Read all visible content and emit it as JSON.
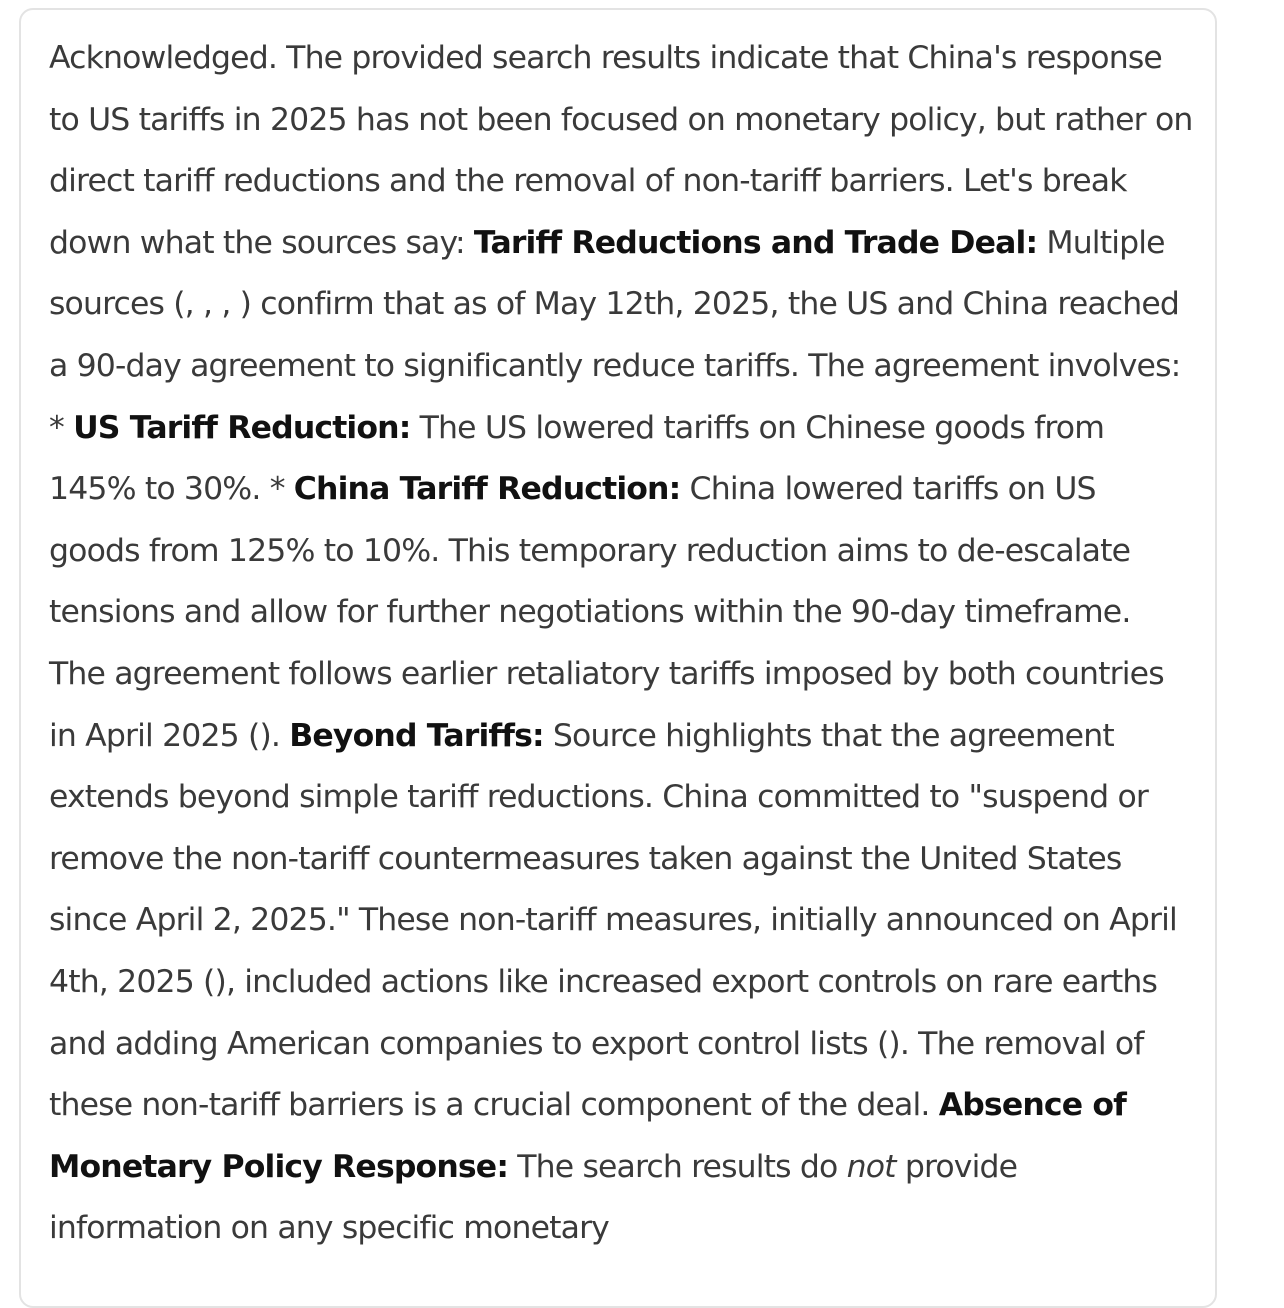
{
  "message": {
    "intro": "Acknowledged. The provided search results indicate that China's response to US tariffs in 2025 has not been focused on monetary policy, but rather on direct tariff reductions and the removal of non-tariff barriers. Let's break down what the sources say: ",
    "h1": "Tariff Reductions and Trade Deal:",
    "p1": " Multiple sources (, , , ) confirm that as of May 12th, 2025, the US and China reached a 90-day agreement to significantly reduce tariffs. The agreement involves: * ",
    "h1a": "US Tariff Reduction:",
    "p1a": " The US lowered tariffs on Chinese goods from 145% to 30%. * ",
    "h1b": "China Tariff Reduction:",
    "p1b": " China lowered tariffs on US goods from 125% to 10%. This temporary reduction aims to de-escalate tensions and allow for further negotiations within the 90-day timeframe. The agreement follows earlier retaliatory tariffs imposed by both countries in April 2025 (). ",
    "h2": "Beyond Tariffs:",
    "p2": " Source highlights that the agreement extends beyond simple tariff reductions. China committed to \"suspend or remove the non-tariff countermeasures taken against the United States since April 2, 2025.\" These non-tariff measures, initially announced on April 4th, 2025 (), included actions like increased export controls on rare earths and adding American companies to export control lists (). The removal of these non-tariff barriers is a crucial component of the deal. ",
    "h3": "Absence of Monetary Policy Response:",
    "p3a": " The search results do ",
    "p3em": "not",
    "p3b": " provide information on any specific monetary"
  }
}
